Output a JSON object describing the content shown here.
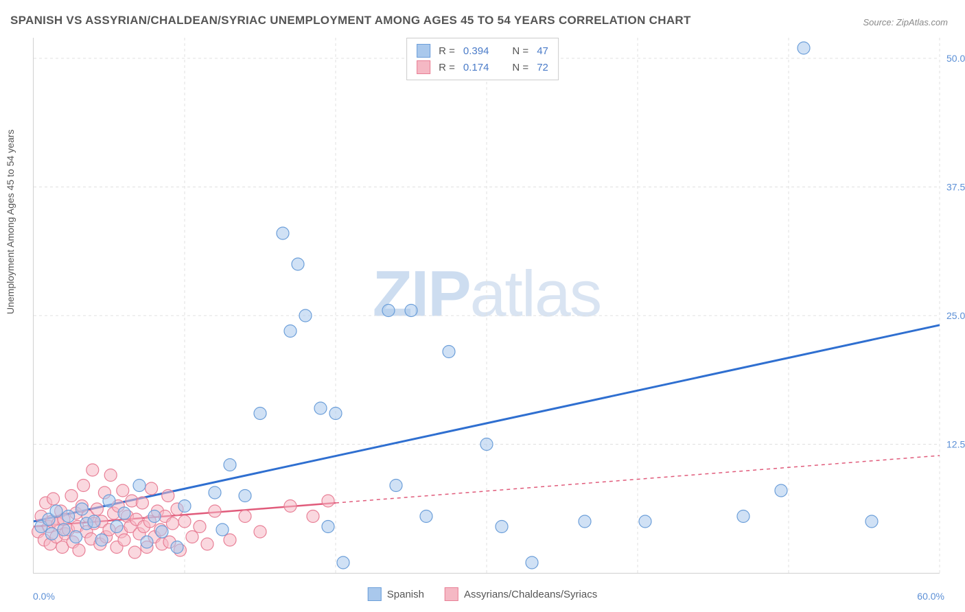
{
  "title": "SPANISH VS ASSYRIAN/CHALDEAN/SYRIAC UNEMPLOYMENT AMONG AGES 45 TO 54 YEARS CORRELATION CHART",
  "source": "Source: ZipAtlas.com",
  "y_axis_label": "Unemployment Among Ages 45 to 54 years",
  "watermark_a": "ZIP",
  "watermark_b": "atlas",
  "chart": {
    "type": "scatter",
    "xlim": [
      0,
      60
    ],
    "ylim": [
      0,
      52
    ],
    "x_ticks": [
      0,
      10,
      20,
      30,
      40,
      50,
      60
    ],
    "y_ticks": [
      12.5,
      25.0,
      37.5,
      50.0
    ],
    "y_tick_labels": [
      "12.5%",
      "25.0%",
      "37.5%",
      "50.0%"
    ],
    "x_origin_label": "0.0%",
    "x_end_label": "60.0%",
    "background_color": "#ffffff",
    "grid_color": "#e0e0e0",
    "marker_radius": 9,
    "marker_opacity": 0.55,
    "series": {
      "spanish": {
        "label": "Spanish",
        "fill": "#a9c8ec",
        "stroke": "#6b9ed9",
        "trend_color": "#2f6fd0",
        "trend_width": 3,
        "trend_solid_end_x": 60,
        "trend_dash": false,
        "trend_intercept": 5.0,
        "trend_slope": 0.318,
        "R": "0.394",
        "N": "47",
        "points": [
          [
            0.5,
            4.5
          ],
          [
            1.0,
            5.2
          ],
          [
            1.2,
            3.8
          ],
          [
            1.5,
            6.0
          ],
          [
            2.0,
            4.2
          ],
          [
            2.3,
            5.5
          ],
          [
            2.8,
            3.5
          ],
          [
            3.2,
            6.2
          ],
          [
            3.5,
            4.8
          ],
          [
            4.0,
            5.0
          ],
          [
            4.5,
            3.2
          ],
          [
            5.0,
            7.0
          ],
          [
            5.5,
            4.5
          ],
          [
            6.0,
            5.8
          ],
          [
            7.0,
            8.5
          ],
          [
            7.5,
            3.0
          ],
          [
            8.0,
            5.5
          ],
          [
            8.5,
            4.0
          ],
          [
            9.5,
            2.5
          ],
          [
            10.0,
            6.5
          ],
          [
            12.0,
            7.8
          ],
          [
            12.5,
            4.2
          ],
          [
            13.0,
            10.5
          ],
          [
            14.0,
            7.5
          ],
          [
            15.0,
            15.5
          ],
          [
            16.5,
            33.0
          ],
          [
            17.0,
            23.5
          ],
          [
            17.5,
            30.0
          ],
          [
            18.0,
            25.0
          ],
          [
            19.0,
            16.0
          ],
          [
            19.5,
            4.5
          ],
          [
            20.0,
            15.5
          ],
          [
            20.5,
            1.0
          ],
          [
            23.5,
            25.5
          ],
          [
            24.0,
            8.5
          ],
          [
            25.0,
            25.5
          ],
          [
            26.0,
            5.5
          ],
          [
            27.5,
            21.5
          ],
          [
            30.0,
            12.5
          ],
          [
            31.0,
            4.5
          ],
          [
            33.0,
            1.0
          ],
          [
            36.5,
            5.0
          ],
          [
            40.5,
            5.0
          ],
          [
            47.0,
            5.5
          ],
          [
            49.5,
            8.0
          ],
          [
            51.0,
            51.0
          ],
          [
            55.5,
            5.0
          ]
        ]
      },
      "assyrian": {
        "label": "Assyrians/Chaldeans/Syriacs",
        "fill": "#f5b8c4",
        "stroke": "#e87f96",
        "trend_color": "#e05a7a",
        "trend_width": 2.5,
        "trend_solid_end_x": 20,
        "trend_dash": true,
        "trend_intercept": 4.5,
        "trend_slope": 0.115,
        "R": "0.174",
        "N": "72",
        "points": [
          [
            0.3,
            4.0
          ],
          [
            0.5,
            5.5
          ],
          [
            0.7,
            3.2
          ],
          [
            0.8,
            6.8
          ],
          [
            1.0,
            4.5
          ],
          [
            1.1,
            2.8
          ],
          [
            1.2,
            5.0
          ],
          [
            1.3,
            7.2
          ],
          [
            1.5,
            3.5
          ],
          [
            1.6,
            4.8
          ],
          [
            1.8,
            6.0
          ],
          [
            1.9,
            2.5
          ],
          [
            2.0,
            5.2
          ],
          [
            2.1,
            3.8
          ],
          [
            2.3,
            4.2
          ],
          [
            2.5,
            7.5
          ],
          [
            2.6,
            3.0
          ],
          [
            2.8,
            5.8
          ],
          [
            2.9,
            4.5
          ],
          [
            3.0,
            2.2
          ],
          [
            3.2,
            6.5
          ],
          [
            3.3,
            8.5
          ],
          [
            3.5,
            4.0
          ],
          [
            3.6,
            5.5
          ],
          [
            3.8,
            3.3
          ],
          [
            3.9,
            10.0
          ],
          [
            4.0,
            4.8
          ],
          [
            4.2,
            6.2
          ],
          [
            4.4,
            2.8
          ],
          [
            4.5,
            5.0
          ],
          [
            4.7,
            7.8
          ],
          [
            4.8,
            3.5
          ],
          [
            5.0,
            4.2
          ],
          [
            5.1,
            9.5
          ],
          [
            5.3,
            5.8
          ],
          [
            5.5,
            2.5
          ],
          [
            5.6,
            6.5
          ],
          [
            5.8,
            4.0
          ],
          [
            5.9,
            8.0
          ],
          [
            6.0,
            3.2
          ],
          [
            6.2,
            5.5
          ],
          [
            6.4,
            4.5
          ],
          [
            6.5,
            7.0
          ],
          [
            6.7,
            2.0
          ],
          [
            6.8,
            5.2
          ],
          [
            7.0,
            3.8
          ],
          [
            7.2,
            6.8
          ],
          [
            7.3,
            4.5
          ],
          [
            7.5,
            2.5
          ],
          [
            7.7,
            5.0
          ],
          [
            7.8,
            8.2
          ],
          [
            8.0,
            3.5
          ],
          [
            8.2,
            6.0
          ],
          [
            8.4,
            4.2
          ],
          [
            8.5,
            2.8
          ],
          [
            8.7,
            5.5
          ],
          [
            8.9,
            7.5
          ],
          [
            9.0,
            3.0
          ],
          [
            9.2,
            4.8
          ],
          [
            9.5,
            6.2
          ],
          [
            9.7,
            2.2
          ],
          [
            10.0,
            5.0
          ],
          [
            10.5,
            3.5
          ],
          [
            11.0,
            4.5
          ],
          [
            11.5,
            2.8
          ],
          [
            12.0,
            6.0
          ],
          [
            13.0,
            3.2
          ],
          [
            14.0,
            5.5
          ],
          [
            15.0,
            4.0
          ],
          [
            17.0,
            6.5
          ],
          [
            18.5,
            5.5
          ],
          [
            19.5,
            7.0
          ]
        ]
      }
    }
  },
  "stats_label_R": "R =",
  "stats_label_N": "N ="
}
